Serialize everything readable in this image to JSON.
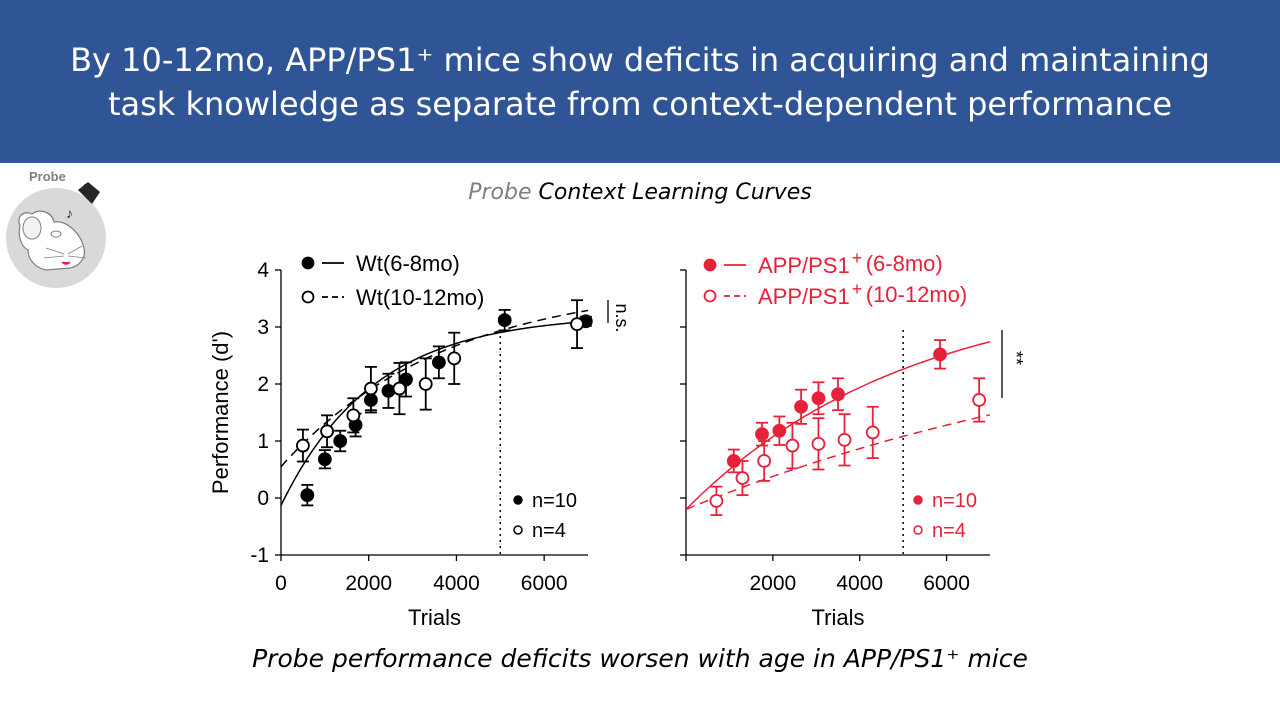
{
  "slide": {
    "title_line1": "By 10-12mo, APP/PS1⁺ mice show deficits in acquiring and maintaining",
    "title_line2": "task knowledge as separate from context-dependent performance",
    "subtitle_grey": "Probe",
    "subtitle_rest": "Context Learning Curves",
    "caption": "Probe performance deficits worsen with age in APP/PS1⁺ mice",
    "icon_label": "Probe"
  },
  "chart_data": [
    {
      "type": "scatter",
      "ylabel": "Performance (d')",
      "xlabel": "Trials",
      "xlim": [
        0,
        7000
      ],
      "ylim": [
        -1,
        4
      ],
      "xticks": [
        0,
        2000,
        4000,
        6000
      ],
      "yticks": [
        -1,
        0,
        1,
        2,
        3,
        4
      ],
      "vline_x": 5000,
      "significance": "n.s.",
      "legend": {
        "label1_a": "Wt(6-8mo)",
        "label1_b": "",
        "label2_a": "Wt(10-12mo)",
        "label2_b": ""
      },
      "n_labels": [
        "n=10",
        "n=4"
      ],
      "color": "#000000",
      "series": [
        {
          "name": "Wt(6-8mo)",
          "filled": true,
          "x": [
            600,
            1000,
            1350,
            1700,
            2050,
            2450,
            2850,
            3600,
            5100,
            6950
          ],
          "y": [
            0.05,
            0.68,
            1.0,
            1.28,
            1.72,
            1.88,
            2.08,
            2.38,
            3.12,
            3.1
          ],
          "err": [
            0.18,
            0.16,
            0.18,
            0.2,
            0.22,
            0.3,
            0.3,
            0.28,
            0.18,
            0.08
          ],
          "fit": {
            "a": 3.22,
            "b": 3.35,
            "k": 0.000472
          }
        },
        {
          "name": "Wt(10-12mo)",
          "filled": false,
          "x": [
            500,
            1050,
            1650,
            2050,
            2700,
            3300,
            3950,
            6750
          ],
          "y": [
            0.92,
            1.17,
            1.45,
            1.92,
            1.92,
            2.0,
            2.45,
            3.05
          ],
          "err": [
            0.28,
            0.28,
            0.3,
            0.38,
            0.45,
            0.45,
            0.45,
            0.42
          ],
          "fit": {
            "a": 3.8,
            "b": 3.25,
            "k": 0.000265
          }
        }
      ]
    },
    {
      "type": "scatter",
      "ylabel": "",
      "xlabel": "Trials",
      "xlim": [
        0,
        7000
      ],
      "ylim": [
        -1,
        4
      ],
      "xticks": [
        2000,
        4000,
        6000
      ],
      "yticks": [
        -1,
        0,
        1,
        2,
        3,
        4
      ],
      "vline_x": 5000,
      "significance": "**",
      "legend": {
        "label1_a": "APP/PS1",
        "label1_b": "(6-8mo)",
        "label2_a": "APP/PS1",
        "label2_b": "(10-12mo)"
      },
      "n_labels": [
        "n=10",
        "n=4"
      ],
      "color": "#e8213a",
      "series": [
        {
          "name": "APP/PS1+ (6-8mo)",
          "filled": true,
          "x": [
            1100,
            1750,
            2150,
            2650,
            3050,
            3500,
            5850
          ],
          "y": [
            0.65,
            1.12,
            1.18,
            1.6,
            1.75,
            1.82,
            2.52
          ],
          "err": [
            0.2,
            0.2,
            0.25,
            0.3,
            0.28,
            0.28,
            0.25
          ],
          "fit": {
            "a": 3.75,
            "b": 3.95,
            "k": 0.000195
          }
        },
        {
          "name": "APP/PS1+ (10-12mo)",
          "filled": false,
          "x": [
            700,
            1300,
            1800,
            2450,
            3050,
            3650,
            4300,
            6750
          ],
          "y": [
            -0.05,
            0.35,
            0.65,
            0.92,
            0.95,
            1.02,
            1.15,
            1.72
          ],
          "err": [
            0.25,
            0.3,
            0.35,
            0.4,
            0.45,
            0.45,
            0.45,
            0.38
          ],
          "fit": {
            "a": 3.5,
            "b": 3.7,
            "k": 8.5e-05
          }
        }
      ]
    }
  ]
}
